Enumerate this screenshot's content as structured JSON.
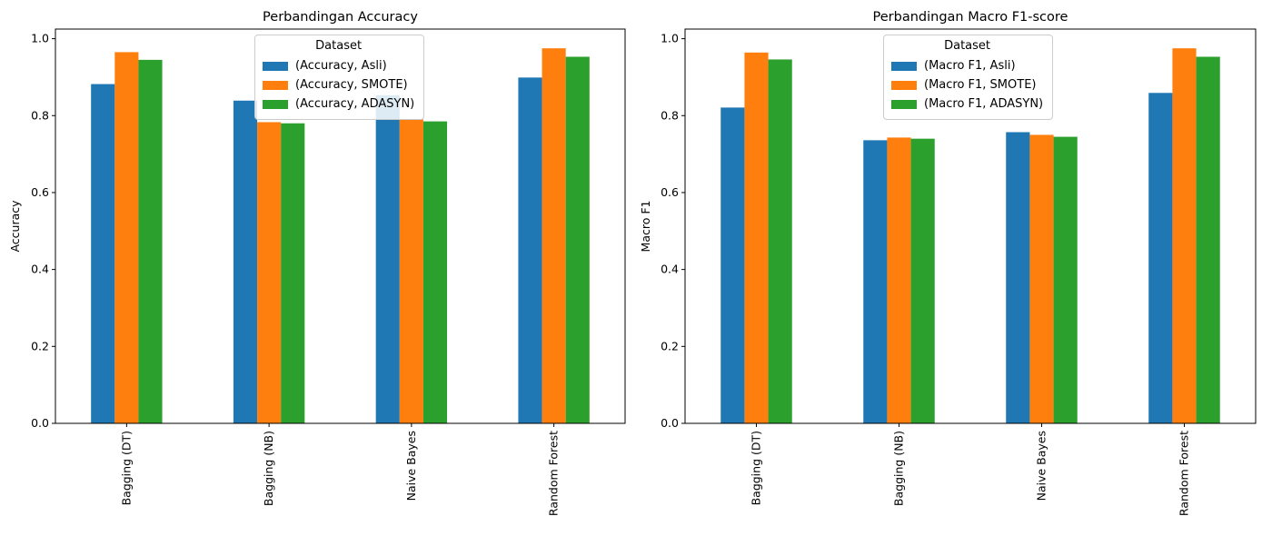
{
  "chart_data": [
    {
      "type": "bar",
      "title": "Perbandingan Accuracy",
      "xlabel": "",
      "ylabel": "Accuracy",
      "ylim": [
        0,
        1.025
      ],
      "yticks": [
        "0.0",
        "0.2",
        "0.4",
        "0.6",
        "0.8",
        "1.0"
      ],
      "categories": [
        "Bagging (DT)",
        "Bagging (NB)",
        "Naive Bayes",
        "Random Forest"
      ],
      "legend_title": "Dataset",
      "legend_position": "upper center",
      "series": [
        {
          "name": "(Accuracy, Asli)",
          "color": "#1f77b4",
          "values": [
            0.882,
            0.839,
            0.853,
            0.899
          ]
        },
        {
          "name": "(Accuracy, SMOTE)",
          "color": "#ff7f0e",
          "values": [
            0.965,
            0.783,
            0.79,
            0.975
          ]
        },
        {
          "name": "(Accuracy, ADASYN)",
          "color": "#2ca02c",
          "values": [
            0.945,
            0.78,
            0.785,
            0.953
          ]
        }
      ]
    },
    {
      "type": "bar",
      "title": "Perbandingan Macro F1-score",
      "xlabel": "",
      "ylabel": "Macro F1",
      "ylim": [
        0,
        1.025
      ],
      "yticks": [
        "0.0",
        "0.2",
        "0.4",
        "0.6",
        "0.8",
        "1.0"
      ],
      "categories": [
        "Bagging (DT)",
        "Bagging (NB)",
        "Naive Bayes",
        "Random Forest"
      ],
      "legend_title": "Dataset",
      "legend_position": "upper center",
      "series": [
        {
          "name": "(Macro F1, Asli)",
          "color": "#1f77b4",
          "values": [
            0.821,
            0.736,
            0.757,
            0.859
          ]
        },
        {
          "name": "(Macro F1, SMOTE)",
          "color": "#ff7f0e",
          "values": [
            0.964,
            0.743,
            0.75,
            0.975
          ]
        },
        {
          "name": "(Macro F1, ADASYN)",
          "color": "#2ca02c",
          "values": [
            0.946,
            0.74,
            0.745,
            0.953
          ]
        }
      ]
    }
  ]
}
